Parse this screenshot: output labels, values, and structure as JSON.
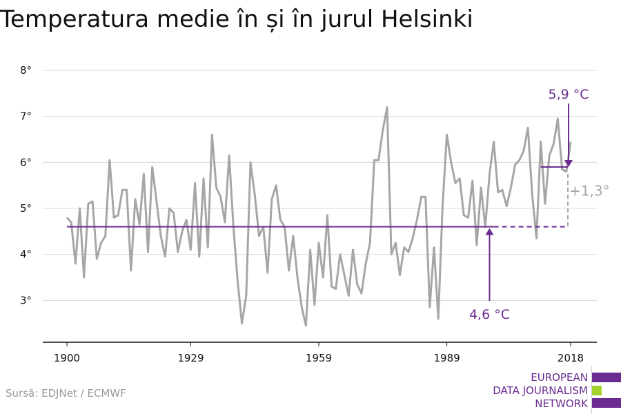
{
  "title": "Temperatura medie în și în jurul Helsinki",
  "source": "Sursă: EDJNet / ECMWF",
  "logo": {
    "lines": [
      "EUROPEAN",
      "DATA JOURNALISM",
      "NETWORK"
    ],
    "colors": {
      "purple": "#6a2c91",
      "green": "#a3d22c"
    }
  },
  "colors": {
    "line": "#a6a6a6",
    "accent": "#6a2c91",
    "grid": "#d9d9d9"
  },
  "chart_data": {
    "type": "line",
    "title": "Temperatura medie în și în jurul Helsinki",
    "xlabel": "",
    "ylabel": "",
    "xlim": [
      1900,
      2018
    ],
    "ylim": [
      2.0,
      8.0
    ],
    "x_ticks": [
      1900,
      1929,
      1959,
      1989,
      2018
    ],
    "x_tick_labels": [
      "1900",
      "1929",
      "1959",
      "1989",
      "2018"
    ],
    "y_ticks": [
      3,
      4,
      5,
      6,
      7,
      8
    ],
    "y_tick_labels": [
      "3°",
      "4°",
      "5°",
      "6°",
      "7°",
      "8°"
    ],
    "grid": true,
    "x": [
      1900,
      1901,
      1902,
      1903,
      1904,
      1905,
      1906,
      1907,
      1908,
      1909,
      1910,
      1911,
      1912,
      1913,
      1914,
      1915,
      1916,
      1917,
      1918,
      1919,
      1920,
      1921,
      1922,
      1923,
      1924,
      1925,
      1926,
      1927,
      1928,
      1929,
      1930,
      1931,
      1932,
      1933,
      1934,
      1935,
      1936,
      1937,
      1938,
      1939,
      1940,
      1941,
      1942,
      1943,
      1944,
      1945,
      1946,
      1947,
      1948,
      1949,
      1950,
      1951,
      1952,
      1953,
      1954,
      1955,
      1956,
      1957,
      1958,
      1959,
      1960,
      1961,
      1962,
      1963,
      1964,
      1965,
      1966,
      1967,
      1968,
      1969,
      1970,
      1971,
      1972,
      1973,
      1974,
      1975,
      1976,
      1977,
      1978,
      1979,
      1980,
      1981,
      1982,
      1983,
      1984,
      1985,
      1986,
      1987,
      1988,
      1989,
      1990,
      1991,
      1992,
      1993,
      1994,
      1995,
      1996,
      1997,
      1998,
      1999,
      2000,
      2001,
      2002,
      2003,
      2004,
      2005,
      2006,
      2007,
      2008,
      2009,
      2010,
      2011,
      2012,
      2013,
      2014,
      2015,
      2016,
      2017,
      2018
    ],
    "series": [
      {
        "values": [
          4.8,
          4.7,
          3.8,
          5.0,
          3.5,
          5.1,
          5.15,
          3.9,
          4.25,
          4.4,
          6.05,
          4.8,
          4.85,
          5.4,
          5.4,
          3.65,
          5.2,
          4.65,
          5.75,
          4.05,
          5.9,
          5.15,
          4.4,
          3.95,
          5.0,
          4.9,
          4.05,
          4.5,
          4.75,
          4.1,
          5.55,
          3.95,
          5.65,
          4.15,
          6.6,
          5.45,
          5.25,
          4.7,
          6.15,
          4.6,
          3.4,
          2.5,
          3.1,
          6.0,
          5.3,
          4.4,
          4.6,
          3.6,
          5.2,
          5.5,
          4.75,
          4.6,
          3.65,
          4.4,
          3.5,
          2.85,
          2.45,
          4.1,
          2.9,
          4.25,
          3.5,
          4.85,
          3.3,
          3.25,
          4.0,
          3.55,
          3.1,
          4.1,
          3.35,
          3.15,
          3.8,
          4.25,
          6.05,
          6.05,
          6.7,
          7.2,
          4.0,
          4.25,
          3.55,
          4.15,
          4.05,
          4.35,
          4.75,
          5.25,
          5.25,
          2.85,
          4.15,
          2.6,
          5.05,
          6.6,
          6.0,
          5.55,
          5.65,
          4.85,
          4.8,
          5.6,
          4.2,
          5.45,
          4.6,
          5.75,
          6.45,
          5.35,
          5.4,
          5.05,
          5.45,
          5.95,
          6.05,
          6.25,
          6.75,
          5.3,
          4.35,
          6.45,
          5.1,
          6.15,
          6.4,
          6.95,
          5.85,
          5.8,
          6.45
        ]
      }
    ],
    "annotations": {
      "baseline_value": 4.6,
      "baseline_label": "4,6 °C",
      "recent_value": 5.9,
      "recent_label": "5,9 °C",
      "recent_from": 2011,
      "difference_label": "+1,3°"
    }
  }
}
